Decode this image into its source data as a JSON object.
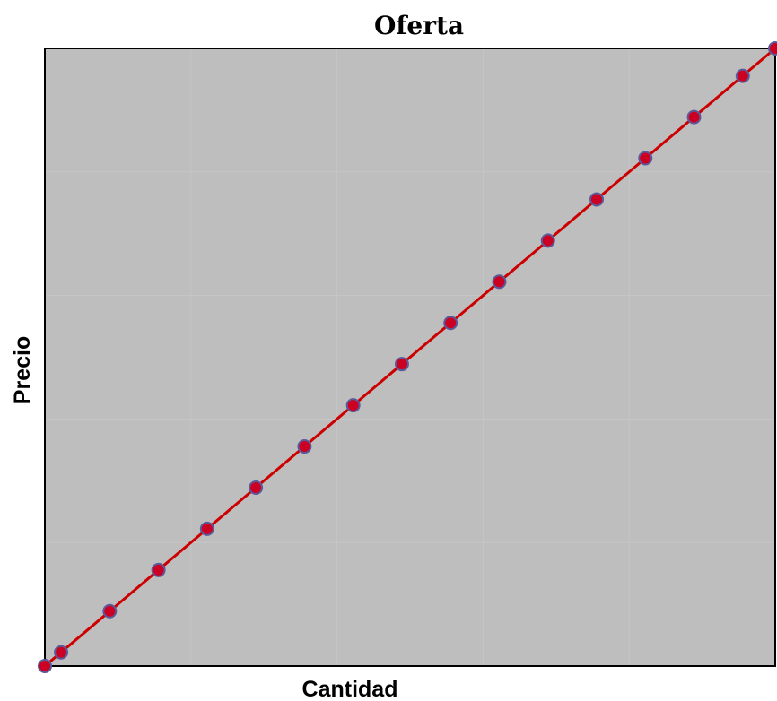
{
  "chart_data": {
    "type": "line",
    "title": "Oferta",
    "xlabel": "Cantidad",
    "ylabel": "Precio",
    "grid": true,
    "legend": "none",
    "xlim": [
      0,
      15
    ],
    "ylim": [
      0,
      15
    ],
    "series": [
      {
        "x": [
          0,
          0.333,
          1.333,
          2.333,
          3.333,
          4.333,
          5.333,
          6.333,
          7.333,
          8.333,
          9.333,
          10.333,
          11.333,
          12.333,
          13.333,
          14.333,
          15
        ],
        "y": [
          0,
          0.333,
          1.333,
          2.333,
          3.333,
          4.333,
          5.333,
          6.333,
          7.333,
          8.333,
          9.333,
          10.333,
          11.333,
          12.333,
          13.333,
          14.333,
          15
        ]
      }
    ],
    "colors": {
      "line": "#cc0000",
      "marker_fill": "#cc0022",
      "marker_edge": "#5a5a9a",
      "plot_background": "#bebebe",
      "grid": "#c6c6c6"
    }
  }
}
